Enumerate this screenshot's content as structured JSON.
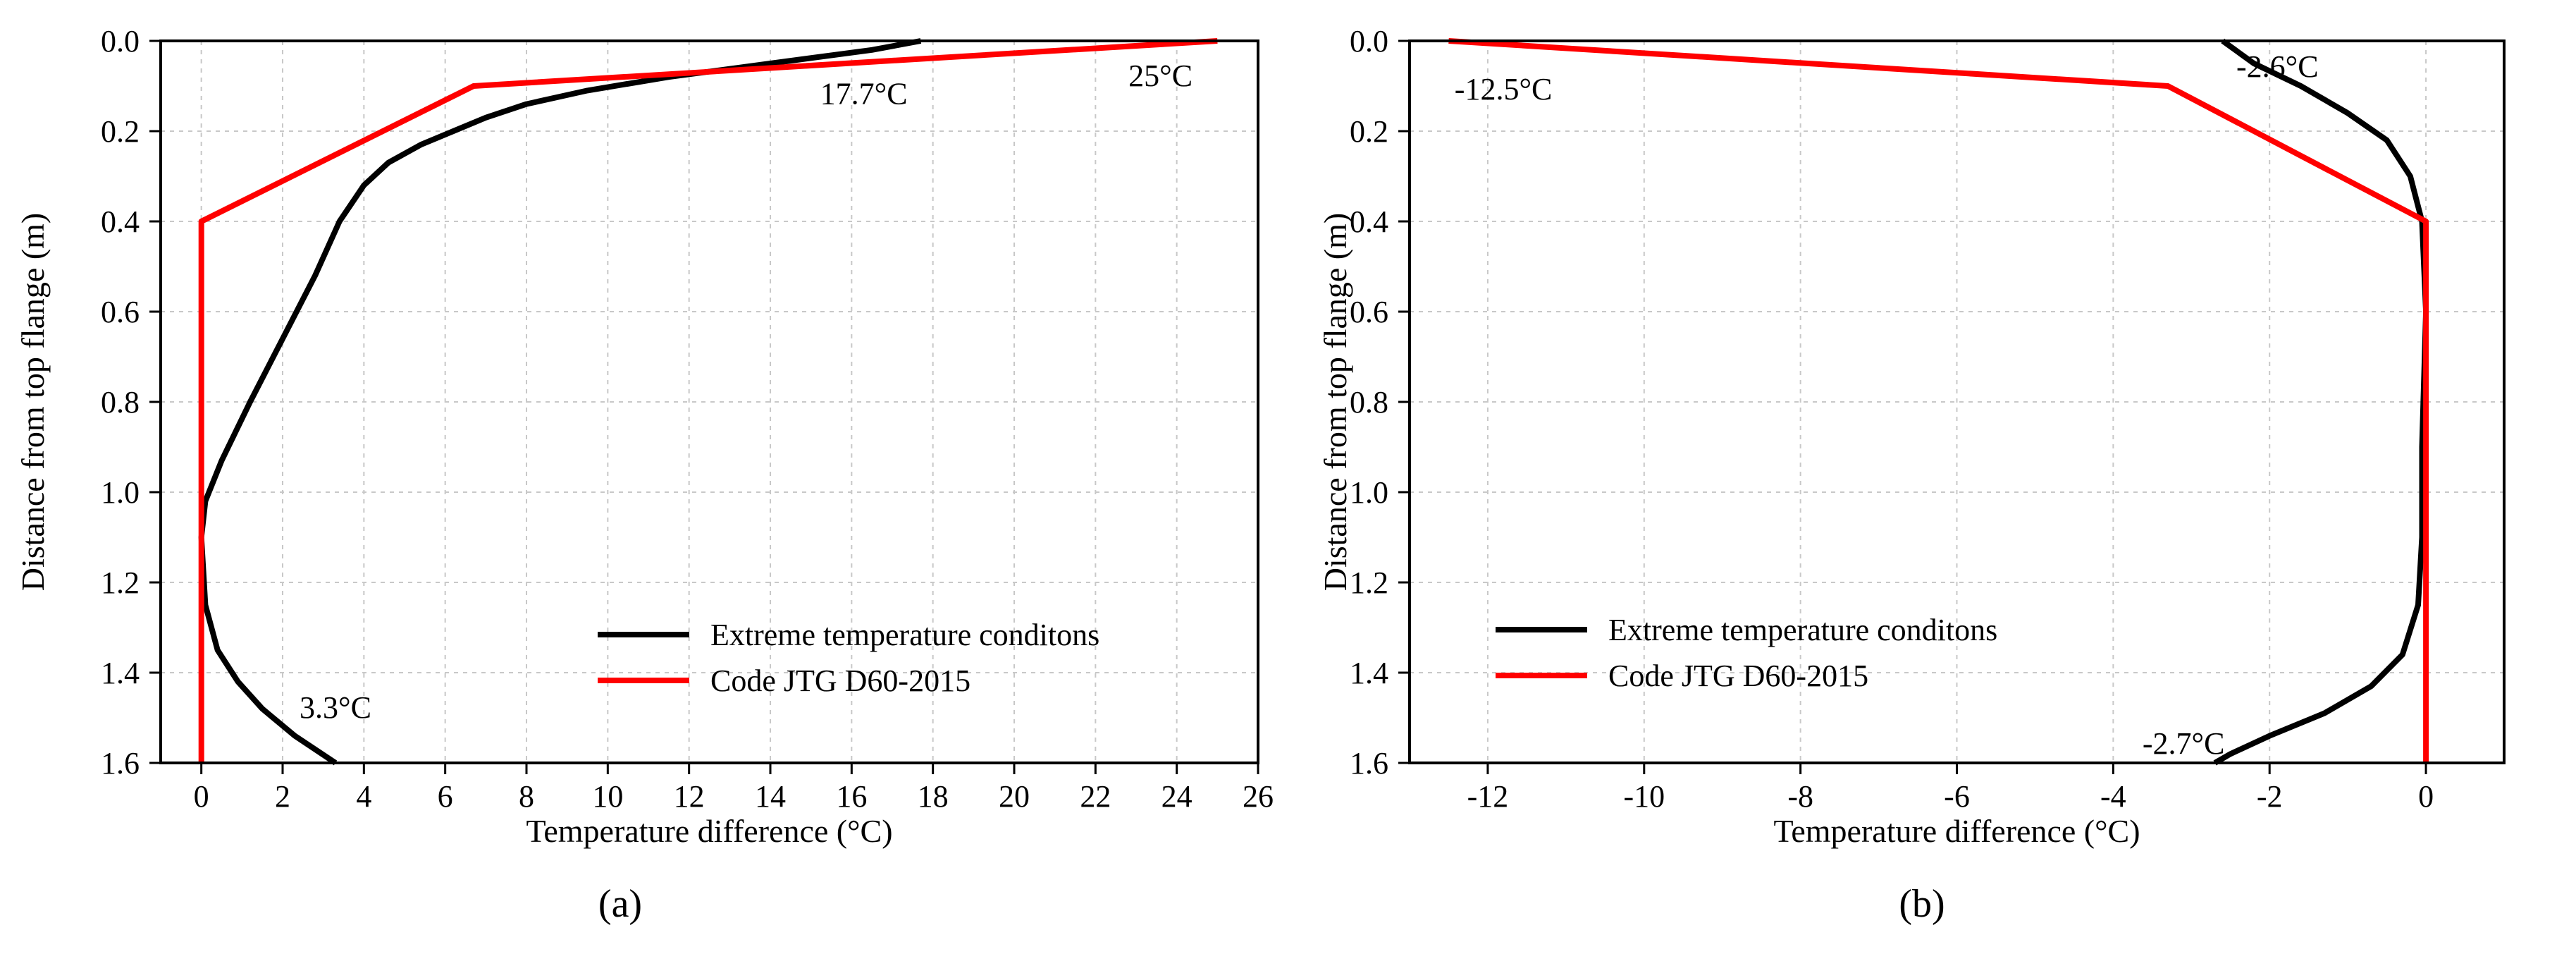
{
  "colors": {
    "extreme": "#000000",
    "code": "#ff0000",
    "grid": "#c8c8c8"
  },
  "chart_data": [
    {
      "id": "a",
      "type": "line",
      "panel_label": "(a)",
      "xlabel": "Temperature difference (°C)",
      "ylabel": "Distance from top flange (m)",
      "xlim": [
        -1,
        26
      ],
      "ylim": [
        0.0,
        1.6
      ],
      "y_inverted": true,
      "x_ticks": [
        0,
        2,
        4,
        6,
        8,
        10,
        12,
        14,
        16,
        18,
        20,
        22,
        24,
        26
      ],
      "y_ticks": [
        0.0,
        0.2,
        0.4,
        0.6,
        0.8,
        1.0,
        1.2,
        1.4,
        1.6
      ],
      "x_tick_labels": [
        "0",
        "2",
        "4",
        "6",
        "8",
        "10",
        "12",
        "14",
        "16",
        "18",
        "20",
        "22",
        "24",
        "26"
      ],
      "y_tick_labels": [
        "0.0",
        "0.2",
        "0.4",
        "0.6",
        "0.8",
        "1.0",
        "1.2",
        "1.4",
        "1.6"
      ],
      "grid": true,
      "legend_position": "bottom-right",
      "series": [
        {
          "name": "Extreme temperature conditons",
          "color": "#000000",
          "x": [
            17.7,
            16.5,
            14.0,
            11.5,
            9.5,
            8.0,
            7.0,
            6.2,
            5.4,
            4.6,
            4.0,
            3.4,
            2.8,
            2.0,
            1.2,
            0.5,
            0.1,
            0.0,
            0.1,
            0.4,
            0.9,
            1.5,
            2.3,
            3.3
          ],
          "y": [
            0.0,
            0.02,
            0.05,
            0.08,
            0.11,
            0.14,
            0.17,
            0.2,
            0.23,
            0.27,
            0.32,
            0.4,
            0.52,
            0.66,
            0.8,
            0.93,
            1.02,
            1.1,
            1.25,
            1.35,
            1.42,
            1.48,
            1.54,
            1.6
          ]
        },
        {
          "name": "Code JTG D60-2015",
          "color": "#ff0000",
          "x": [
            25.0,
            6.7,
            0.0,
            0.0
          ],
          "y": [
            0.0,
            0.1,
            0.4,
            1.6
          ]
        }
      ],
      "annotations": [
        {
          "text": "17.7°C",
          "x": 16.3,
          "y": 0.14
        },
        {
          "text": "25°C",
          "x": 23.6,
          "y": 0.1
        },
        {
          "text": "3.3°C",
          "x": 3.3,
          "y": 1.5
        }
      ]
    },
    {
      "id": "b",
      "type": "line",
      "panel_label": "(b)",
      "xlabel": "Temperature difference (°C)",
      "ylabel": "Distance from top flange (m)",
      "xlim": [
        -13,
        1
      ],
      "ylim": [
        0.0,
        1.6
      ],
      "y_inverted": true,
      "x_ticks": [
        -12,
        -10,
        -8,
        -6,
        -4,
        -2,
        0
      ],
      "y_ticks": [
        0.0,
        0.2,
        0.4,
        0.6,
        0.8,
        1.0,
        1.2,
        1.4,
        1.6
      ],
      "x_tick_labels": [
        "-12",
        "-10",
        "-8",
        "-6",
        "-4",
        "-2",
        "0"
      ],
      "y_tick_labels": [
        "0.0",
        "0.2",
        "0.4",
        "0.6",
        "0.8",
        "1.0",
        "1.2",
        "1.4",
        "1.6"
      ],
      "grid": true,
      "legend_position": "bottom-left",
      "series": [
        {
          "name": "Extreme temperature conditons",
          "color": "#000000",
          "x": [
            -2.6,
            -2.2,
            -1.6,
            -1.0,
            -0.5,
            -0.2,
            -0.05,
            0.0,
            -0.05,
            -0.05,
            -0.1,
            -0.3,
            -0.7,
            -1.3,
            -2.0,
            -2.5,
            -2.7
          ],
          "y": [
            0.0,
            0.05,
            0.1,
            0.16,
            0.22,
            0.3,
            0.4,
            0.6,
            0.9,
            1.1,
            1.25,
            1.36,
            1.43,
            1.49,
            1.54,
            1.58,
            1.6
          ]
        },
        {
          "name": "Code JTG D60-2015",
          "color": "#ff0000",
          "x": [
            -12.5,
            -3.3,
            0.0,
            0.0
          ],
          "y": [
            0.0,
            0.1,
            0.4,
            1.6
          ]
        }
      ],
      "annotations": [
        {
          "text": "-2.6°C",
          "x": -1.9,
          "y": 0.08
        },
        {
          "text": "-12.5°C",
          "x": -11.8,
          "y": 0.13
        },
        {
          "text": "-2.7°C",
          "x": -3.1,
          "y": 1.58
        }
      ]
    }
  ]
}
